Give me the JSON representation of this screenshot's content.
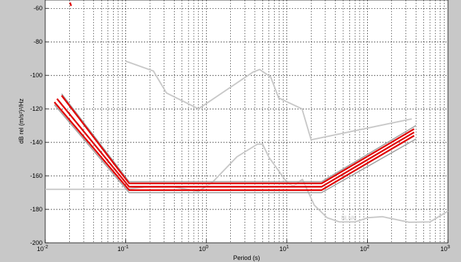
{
  "chart_data": {
    "type": "line",
    "title": "",
    "xlabel": "Period (s)",
    "ylabel": "dB rel (m/s²)²/Hz",
    "xscale": "log",
    "xlim": [
      0.01,
      1000
    ],
    "ylim": [
      -200,
      -55
    ],
    "grid": "on (dashed, major and minor)",
    "legend": "none",
    "x_tick_labels": [
      {
        "base": "10",
        "exp": "-2",
        "value": 0.01
      },
      {
        "base": "10",
        "exp": "-1",
        "value": 0.1
      },
      {
        "base": "10",
        "exp": "0",
        "value": 1
      },
      {
        "base": "10",
        "exp": "1",
        "value": 10
      },
      {
        "base": "10",
        "exp": "2",
        "value": 100
      },
      {
        "base": "10",
        "exp": "3",
        "value": 1000
      }
    ],
    "y_ticks": [
      -60,
      -80,
      -100,
      -120,
      -140,
      -160,
      -180,
      -200
    ],
    "y_tick_labels": [
      "-60",
      "-80",
      "-100",
      "-120",
      "-140",
      "-160",
      "-180",
      "-200"
    ],
    "annotations": [
      {
        "text": "NLNM",
        "x": 2.5,
        "y": -185
      }
    ],
    "series": [
      {
        "color": "#c8c8c8",
        "width": 2,
        "style": "nlnm",
        "x": [
          0.01,
          0.1,
          0.17,
          0.4,
          0.8,
          1.2,
          2.4,
          4.3,
          5.0,
          6.0,
          10,
          12,
          15.6,
          21.9,
          31.6,
          45,
          70,
          101,
          154,
          328,
          600,
          1000
        ],
        "y": [
          -168,
          -168,
          -166.7,
          -166.7,
          -169.2,
          -163.7,
          -148.6,
          -141.1,
          -141.1,
          -149,
          -163.8,
          -166.2,
          -162.1,
          -177.5,
          -185,
          -187.5,
          -187.5,
          -185,
          -184.4,
          -187.7,
          -187.5,
          -181
        ]
      },
      {
        "color": "#c8c8c8",
        "width": 2,
        "style": "nhnm",
        "x": [
          0.1,
          0.22,
          0.32,
          0.8,
          3.8,
          4.6,
          6.3,
          7.9,
          15.4,
          20,
          354.8
        ],
        "y": [
          -91.5,
          -97.4,
          -110.5,
          -120,
          -98,
          -96.5,
          -101,
          -113.5,
          -120,
          -138.5,
          -126
        ]
      },
      {
        "color": "#a0a0a0",
        "width": 1.6,
        "style": "outer",
        "x": [
          0.013,
          0.11,
          27,
          400
        ],
        "y": [
          -117.5,
          -170,
          -170,
          -138
        ]
      },
      {
        "color": "#a0a0a0",
        "width": 1.6,
        "style": "outer",
        "x": [
          0.016,
          0.11,
          27,
          400
        ],
        "y": [
          -111,
          -163.5,
          -163.5,
          -130
        ]
      },
      {
        "color": "#e00000",
        "width": 2.4,
        "style": "band",
        "x": [
          0.013,
          0.11,
          27,
          380
        ],
        "y": [
          -116,
          -168.5,
          -168.5,
          -136
        ]
      },
      {
        "color": "#e00000",
        "width": 2.4,
        "style": "band",
        "x": [
          0.014,
          0.11,
          27,
          380
        ],
        "y": [
          -114,
          -166.5,
          -166.5,
          -134
        ]
      },
      {
        "color": "#e00000",
        "width": 2.4,
        "style": "band",
        "x": [
          0.016,
          0.11,
          27,
          380
        ],
        "y": [
          -112,
          -164.5,
          -164.5,
          -132
        ]
      },
      {
        "color": "#ffffff",
        "width": 1.0,
        "style": "center",
        "x": [
          0.015,
          0.11,
          27,
          380
        ],
        "y": [
          -113,
          -165.5,
          -165.5,
          -133
        ]
      },
      {
        "color": "#e00000",
        "width": 2.4,
        "style": "fragment",
        "x": [
          0.0203,
          0.021
        ],
        "y": [
          -56.5,
          -58.5
        ]
      }
    ]
  }
}
